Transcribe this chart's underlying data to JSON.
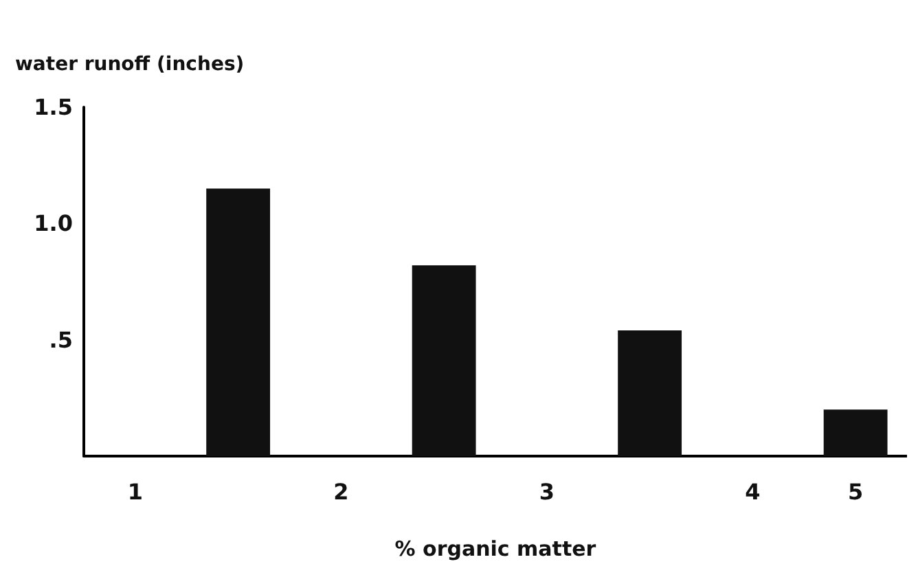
{
  "chart_data": {
    "type": "bar",
    "xlabel": "% organic matter",
    "ylabel": "water runoff (inches)",
    "categories": [
      "1",
      null,
      "2",
      null,
      "3",
      null,
      "4",
      "5"
    ],
    "values": [
      null,
      1.15,
      null,
      0.82,
      null,
      0.54,
      null,
      0.2
    ],
    "color": "#111111",
    "ylim": [
      0,
      1.5
    ],
    "yticks": [
      {
        "value": 0.5,
        "label": ".5"
      },
      {
        "value": 1,
        "label": "1.0"
      },
      {
        "value": 1.5,
        "label": "1.5"
      }
    ],
    "grid": false
  }
}
